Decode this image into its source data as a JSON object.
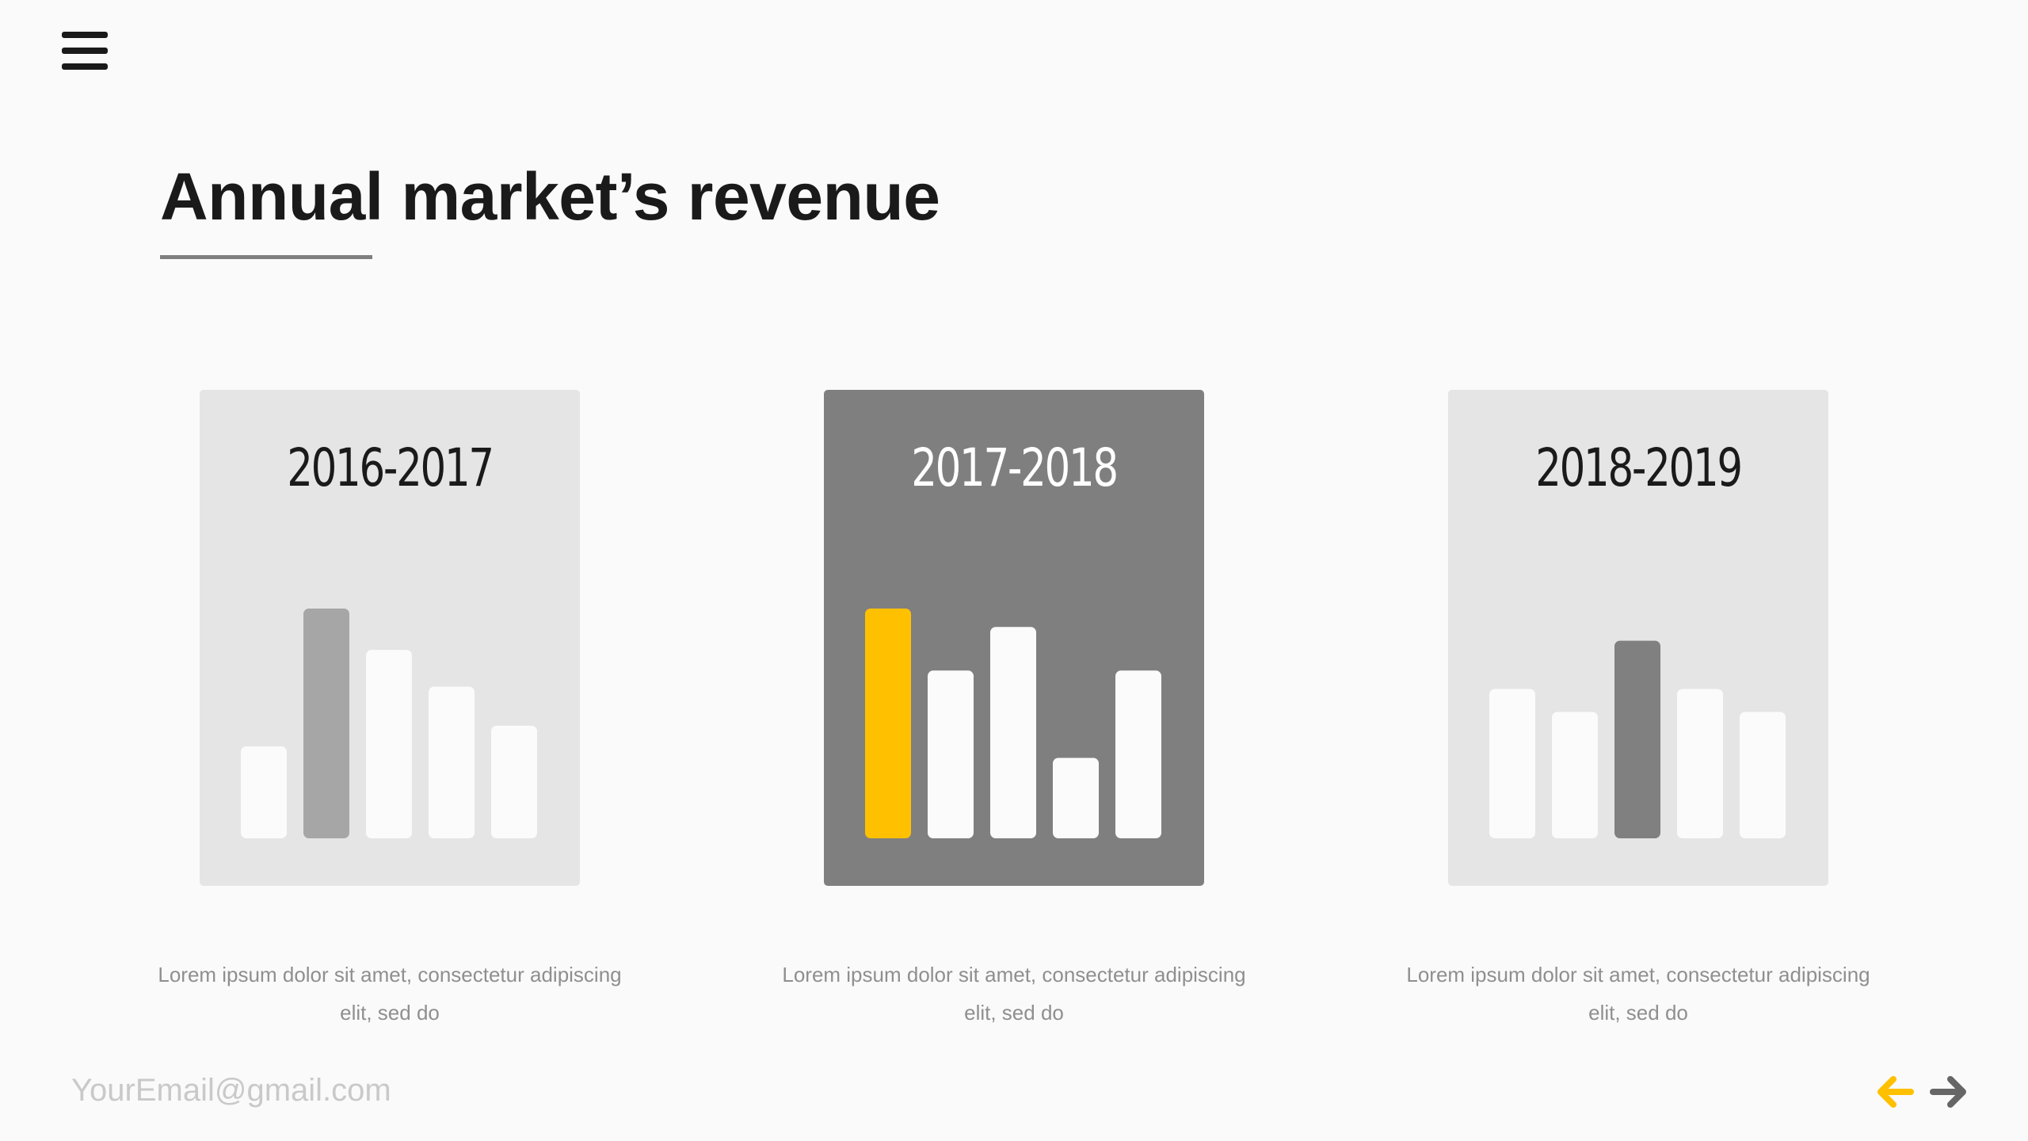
{
  "page": {
    "title": "Annual market’s revenue",
    "footer_email": "YourEmail@gmail.com",
    "menu_icon": "hamburger-menu-icon",
    "nav": {
      "prev_icon": "arrow-left-icon",
      "next_icon": "arrow-right-icon"
    }
  },
  "colors": {
    "background": "#fafafa",
    "text_dark": "#1a1a1a",
    "card_light": "#e6e5e6",
    "card_active": "#7f7f7f",
    "bar_white": "#fbfbfb",
    "bar_highlight_light": "#a6a6a6",
    "bar_highlight_gray": "#808080",
    "accent_yellow": "#ffc000",
    "desc_text": "#8f8f8f",
    "email_text": "#c9c9c9",
    "arrow_next": "#666666"
  },
  "cards": [
    {
      "period": "2016-2017",
      "description": "Lorem ipsum dolor sit amet, consectetur adipiscing elit, sed do",
      "active": false
    },
    {
      "period": "2017-2018",
      "description": "Lorem ipsum dolor sit amet, consectetur adipiscing elit, sed do",
      "active": true
    },
    {
      "period": "2018-2019",
      "description": "Lorem ipsum dolor sit amet, consectetur adipiscing elit, sed do",
      "active": false
    }
  ],
  "chart_data": [
    {
      "type": "bar",
      "title": "2016-2017",
      "values": [
        40,
        100,
        82,
        66,
        49
      ],
      "highlight_index": 1,
      "highlight_color": "#a6a6a6",
      "ylim": [
        0,
        100
      ]
    },
    {
      "type": "bar",
      "title": "2017-2018",
      "values": [
        100,
        73,
        92,
        35,
        73
      ],
      "highlight_index": 0,
      "highlight_color": "#ffc000",
      "ylim": [
        0,
        100
      ]
    },
    {
      "type": "bar",
      "title": "2018-2019",
      "values": [
        65,
        55,
        86,
        65,
        55
      ],
      "highlight_index": 2,
      "highlight_color": "#808080",
      "ylim": [
        0,
        100
      ]
    }
  ]
}
